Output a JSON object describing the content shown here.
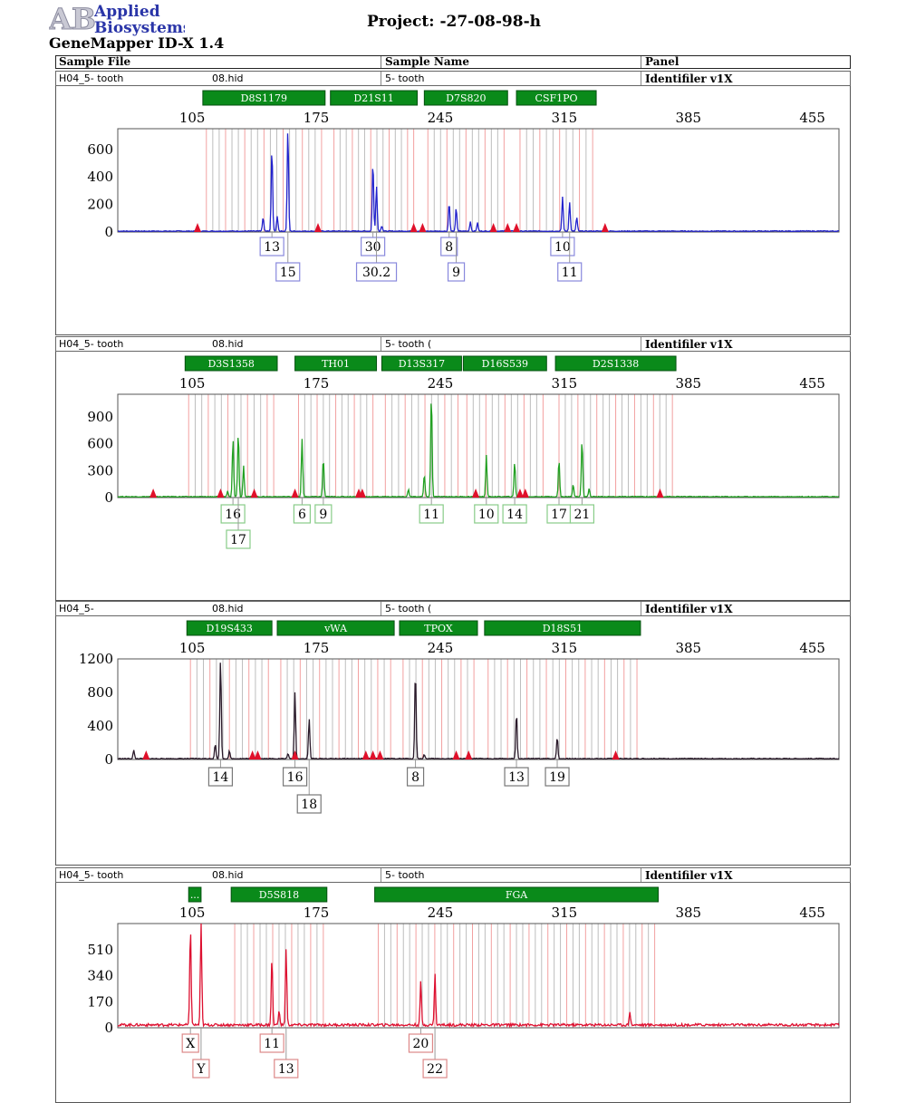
{
  "header": {
    "logo_text_1": "Applied",
    "logo_text_2": "Biosystems",
    "logo_letters": "AB",
    "project": "Project: -27-08-98-h",
    "app_title": "GeneMapper ID-X 1.4"
  },
  "table_header": {
    "col_sample_file": "Sample File",
    "col_sample_name": "Sample Name",
    "col_panel": "Panel"
  },
  "colors": {
    "marker_green": "#0a8a1a",
    "bin_grey": "#bdbdbd",
    "bin_pink": "#f2a0a0",
    "size_std_red": "#e0102a"
  },
  "chart_data": [
    {
      "type": "line",
      "dye": "blue",
      "color": "#2222cc",
      "sample_file": "H04_5- tooth",
      "sample_file_suffix": "08.hid",
      "sample_name": "5- tooth",
      "panel": "Identifiler v1X",
      "x_ticks": [
        105,
        175,
        245,
        315,
        385,
        455
      ],
      "xlim": [
        63,
        470
      ],
      "y_ticks": [
        0,
        200,
        400,
        600
      ],
      "ylim": [
        0,
        750
      ],
      "markers": [
        {
          "name": "D8S1179",
          "start": 111,
          "end": 180
        },
        {
          "name": "D21S11",
          "start": 183,
          "end": 232
        },
        {
          "name": "D7S820",
          "start": 236,
          "end": 283
        },
        {
          "name": "CSF1PO",
          "start": 288,
          "end": 333
        }
      ],
      "peaks": [
        {
          "x": 145,
          "h": 100
        },
        {
          "x": 150,
          "h": 610
        },
        {
          "x": 153,
          "h": 110
        },
        {
          "x": 159,
          "h": 750
        },
        {
          "x": 207,
          "h": 510
        },
        {
          "x": 209,
          "h": 330
        },
        {
          "x": 212,
          "h": 40
        },
        {
          "x": 250,
          "h": 210
        },
        {
          "x": 254,
          "h": 170
        },
        {
          "x": 262,
          "h": 70
        },
        {
          "x": 266,
          "h": 60
        },
        {
          "x": 314,
          "h": 250
        },
        {
          "x": 318,
          "h": 210
        },
        {
          "x": 322,
          "h": 100
        }
      ],
      "size_std": [
        108,
        176,
        230,
        235,
        275,
        283,
        288,
        338
      ],
      "alleles": [
        {
          "label": "13",
          "x": 150,
          "row": 1
        },
        {
          "label": "15",
          "x": 159,
          "row": 2
        },
        {
          "label": "30",
          "x": 207,
          "row": 1
        },
        {
          "label": "30.2",
          "x": 209,
          "row": 2
        },
        {
          "label": "8",
          "x": 250,
          "row": 1
        },
        {
          "label": "9",
          "x": 254,
          "row": 2
        },
        {
          "label": "10",
          "x": 314,
          "row": 1
        },
        {
          "label": "11",
          "x": 318,
          "row": 2
        }
      ]
    },
    {
      "type": "line",
      "dye": "green",
      "color": "#22a022",
      "sample_file": "H04_5- tooth",
      "sample_file_suffix": "08.hid",
      "sample_name": "5- tooth (",
      "panel": "Identifiler v1X",
      "x_ticks": [
        105,
        175,
        245,
        315,
        385,
        455
      ],
      "xlim": [
        63,
        470
      ],
      "y_ticks": [
        0,
        300,
        600,
        900
      ],
      "ylim": [
        0,
        1150
      ],
      "markers": [
        {
          "name": "D3S1358",
          "start": 101,
          "end": 153
        },
        {
          "name": "TH01",
          "start": 163,
          "end": 209
        },
        {
          "name": "D13S317",
          "start": 212,
          "end": 257
        },
        {
          "name": "D16S539",
          "start": 258,
          "end": 305
        },
        {
          "name": "D2S1338",
          "start": 310,
          "end": 378
        }
      ],
      "peaks": [
        {
          "x": 128,
          "h": 650
        },
        {
          "x": 131,
          "h": 720
        },
        {
          "x": 134,
          "h": 350
        },
        {
          "x": 125,
          "h": 60
        },
        {
          "x": 167,
          "h": 640
        },
        {
          "x": 179,
          "h": 430
        },
        {
          "x": 227,
          "h": 80
        },
        {
          "x": 236,
          "h": 250
        },
        {
          "x": 240,
          "h": 1150
        },
        {
          "x": 271,
          "h": 460
        },
        {
          "x": 287,
          "h": 390
        },
        {
          "x": 312,
          "h": 410
        },
        {
          "x": 320,
          "h": 140
        },
        {
          "x": 325,
          "h": 640
        },
        {
          "x": 329,
          "h": 90
        }
      ],
      "size_std": [
        83,
        121,
        140,
        163,
        199,
        201,
        265,
        290,
        293,
        369
      ],
      "alleles": [
        {
          "label": "16",
          "x": 128,
          "row": 1
        },
        {
          "label": "17",
          "x": 131,
          "row": 2
        },
        {
          "label": "6",
          "x": 167,
          "row": 1
        },
        {
          "label": "9",
          "x": 179,
          "row": 1
        },
        {
          "label": "11",
          "x": 240,
          "row": 1
        },
        {
          "label": "10",
          "x": 271,
          "row": 1
        },
        {
          "label": "14",
          "x": 287,
          "row": 1
        },
        {
          "label": "17",
          "x": 312,
          "row": 1
        },
        {
          "label": "21",
          "x": 325,
          "row": 1
        }
      ]
    },
    {
      "type": "line",
      "dye": "yellow",
      "color": "#2a1a2a",
      "sample_file": "H04_5-",
      "sample_file_suffix": "08.hid",
      "sample_name": "5- tooth (",
      "panel": "Identifiler v1X",
      "x_ticks": [
        105,
        175,
        245,
        315,
        385,
        455
      ],
      "xlim": [
        63,
        470
      ],
      "y_ticks": [
        0,
        400,
        800,
        1200
      ],
      "ylim": [
        0,
        1200
      ],
      "markers": [
        {
          "name": "D19S433",
          "start": 102,
          "end": 150
        },
        {
          "name": "vWA",
          "start": 153,
          "end": 219
        },
        {
          "name": "TPOX",
          "start": 222,
          "end": 266
        },
        {
          "name": "D18S51",
          "start": 270,
          "end": 358
        }
      ],
      "peaks": [
        {
          "x": 72,
          "h": 100
        },
        {
          "x": 118,
          "h": 180
        },
        {
          "x": 121,
          "h": 1200
        },
        {
          "x": 126,
          "h": 90
        },
        {
          "x": 159,
          "h": 60
        },
        {
          "x": 163,
          "h": 800
        },
        {
          "x": 171,
          "h": 480
        },
        {
          "x": 231,
          "h": 1060
        },
        {
          "x": 236,
          "h": 50
        },
        {
          "x": 288,
          "h": 550
        },
        {
          "x": 311,
          "h": 260
        }
      ],
      "size_std": [
        79,
        139,
        142,
        163,
        203,
        207,
        211,
        254,
        261,
        344
      ],
      "alleles": [
        {
          "label": "14",
          "x": 121,
          "row": 1
        },
        {
          "label": "16",
          "x": 163,
          "row": 1
        },
        {
          "label": "18",
          "x": 171,
          "row": 2
        },
        {
          "label": "8",
          "x": 231,
          "row": 1
        },
        {
          "label": "13",
          "x": 288,
          "row": 1
        },
        {
          "label": "19",
          "x": 311,
          "row": 1
        }
      ]
    },
    {
      "type": "line",
      "dye": "red",
      "color": "#dd1030",
      "sample_file": "H04_5- tooth",
      "sample_file_suffix": "08.hid",
      "sample_name": "5- tooth",
      "panel": "Identifiler v1X",
      "x_ticks": [
        105,
        175,
        245,
        315,
        385,
        455
      ],
      "xlim": [
        63,
        470
      ],
      "y_ticks": [
        0,
        170,
        340,
        510
      ],
      "ylim": [
        0,
        680
      ],
      "markers": [
        {
          "name": "...",
          "start": 103,
          "end": 110
        },
        {
          "name": "D5S818",
          "start": 127,
          "end": 181
        },
        {
          "name": "FGA",
          "start": 208,
          "end": 368
        }
      ],
      "peaks": [
        {
          "x": 104,
          "h": 640
        },
        {
          "x": 110,
          "h": 660
        },
        {
          "x": 150,
          "h": 440
        },
        {
          "x": 154,
          "h": 100
        },
        {
          "x": 158,
          "h": 500
        },
        {
          "x": 234,
          "h": 280
        },
        {
          "x": 242,
          "h": 340
        },
        {
          "x": 352,
          "h": 90
        }
      ],
      "size_std": [],
      "alleles": [
        {
          "label": "X",
          "x": 104,
          "row": 1
        },
        {
          "label": "Y",
          "x": 110,
          "row": 2
        },
        {
          "label": "11",
          "x": 150,
          "row": 1
        },
        {
          "label": "13",
          "x": 158,
          "row": 2
        },
        {
          "label": "20",
          "x": 234,
          "row": 1
        },
        {
          "label": "22",
          "x": 242,
          "row": 2
        }
      ]
    }
  ]
}
